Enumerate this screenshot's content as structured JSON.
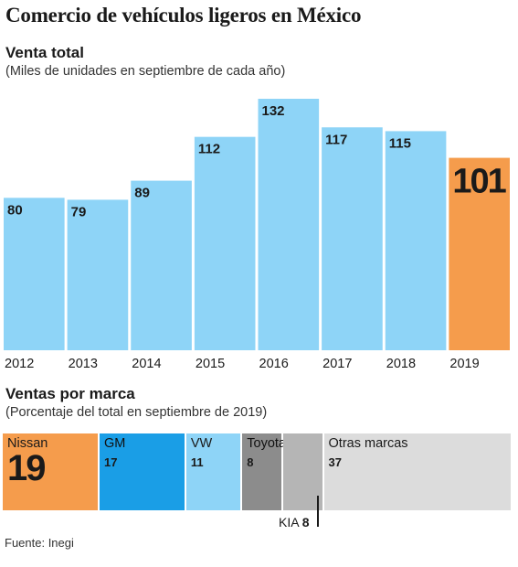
{
  "title": "Comercio de vehículos ligeros en México",
  "chart_data": [
    {
      "type": "bar",
      "title": "Venta total",
      "subtitle": "(Miles de unidades en septiembre de cada año)",
      "categories": [
        "2012",
        "2013",
        "2014",
        "2015",
        "2016",
        "2017",
        "2018",
        "2019"
      ],
      "values": [
        80,
        79,
        89,
        112,
        132,
        117,
        115,
        101
      ],
      "highlight": "2019",
      "colors": {
        "default": "#8ed4f7",
        "highlight": "#f59c4c"
      },
      "ylim": [
        0,
        132
      ],
      "grid": false,
      "xlabel": "",
      "ylabel": ""
    },
    {
      "type": "bar",
      "stacked": true,
      "orientation": "horizontal",
      "title": "Ventas por marca",
      "subtitle": "(Porcentaje del total en septiembre de 2019)",
      "segments": [
        {
          "name": "Nissan",
          "value": 19,
          "color": "#f59c4c"
        },
        {
          "name": "GM",
          "value": 17,
          "color": "#1a9ee6"
        },
        {
          "name": "VW",
          "value": 11,
          "color": "#8ed4f7"
        },
        {
          "name": "Toyota",
          "value": 8,
          "color": "#8c8c8c"
        },
        {
          "name": "KIA",
          "value": 8,
          "color": "#b5b5b5"
        },
        {
          "name": "Otras marcas",
          "value": 37,
          "color": "#dcdcdc"
        }
      ]
    }
  ],
  "source": "Fuente: Inegi"
}
